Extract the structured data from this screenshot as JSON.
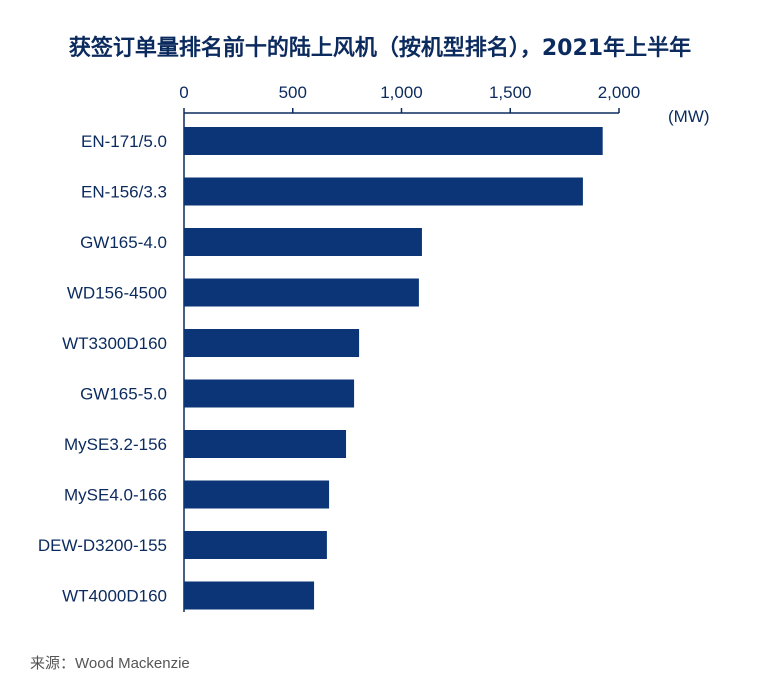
{
  "chart_data": {
    "type": "bar",
    "orientation": "horizontal",
    "title": "获签订单量排名前十的陆上风机（按机型排名），2021年上半年",
    "unit_label": "(MW)",
    "categories": [
      "EN-171/5.0",
      "EN-156/3.3",
      "GW165-4.0",
      "WD156-4500",
      "WT3300D160",
      "GW165-5.0",
      "MySE3.2-156",
      "MySE4.0-166",
      "DEW-D3200-155",
      "WT4000D160"
    ],
    "values": [
      1925,
      1834,
      1094,
      1080,
      805,
      782,
      745,
      667,
      657,
      598
    ],
    "xlim": [
      0,
      2000
    ],
    "ticks": [
      0,
      500,
      1000,
      1500,
      2000
    ],
    "tick_labels": [
      "0",
      "500",
      "1,000",
      "1,500",
      "2,000"
    ],
    "axis_position": "top",
    "grid": false,
    "bar_color": "#0b3577"
  },
  "source": "来源：Wood Mackenzie"
}
